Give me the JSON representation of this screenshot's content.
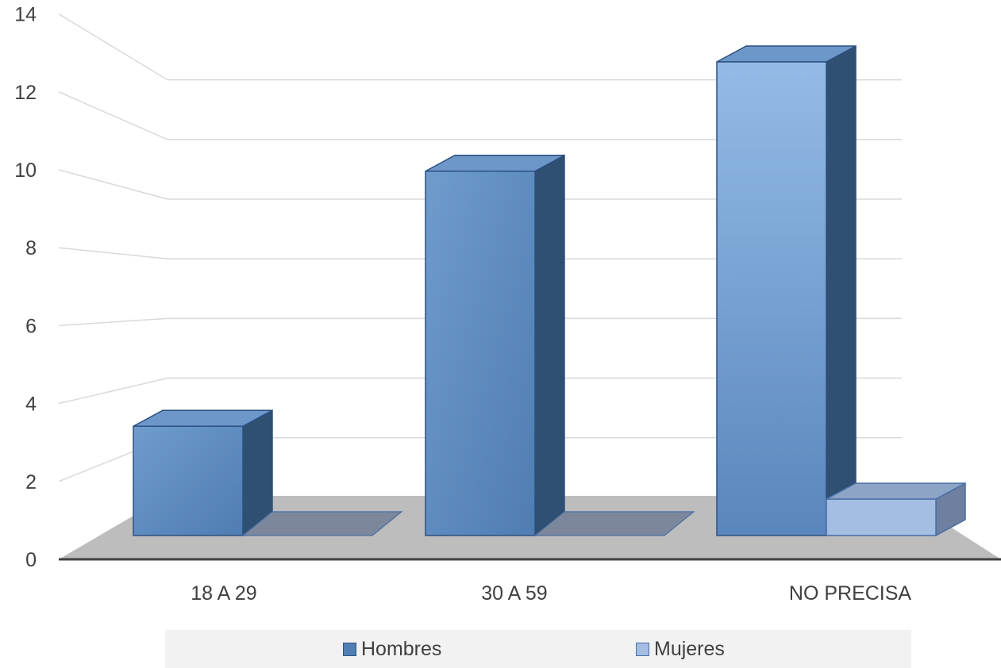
{
  "chart_data": {
    "type": "bar",
    "title": "",
    "xlabel": "",
    "ylabel": "",
    "categories": [
      "18 A 29",
      "30 A 59",
      "NO PRECISA"
    ],
    "series": [
      {
        "name": "Hombres",
        "values": [
          3,
          10,
          13
        ]
      },
      {
        "name": "Mujeres",
        "values": [
          0,
          0,
          1
        ]
      }
    ],
    "ylim": [
      0,
      14
    ],
    "yticks": [
      0,
      2,
      4,
      6,
      8,
      10,
      12,
      14
    ],
    "grid": true,
    "legend": "bottom",
    "style": "3d-clustered"
  },
  "colors": {
    "hombres": "#4f7fb5",
    "mujeres": "#a3bde3",
    "floor": "#bdbdbd"
  },
  "legend": {
    "items": [
      {
        "label": "Hombres"
      },
      {
        "label": "Mujeres"
      }
    ]
  }
}
